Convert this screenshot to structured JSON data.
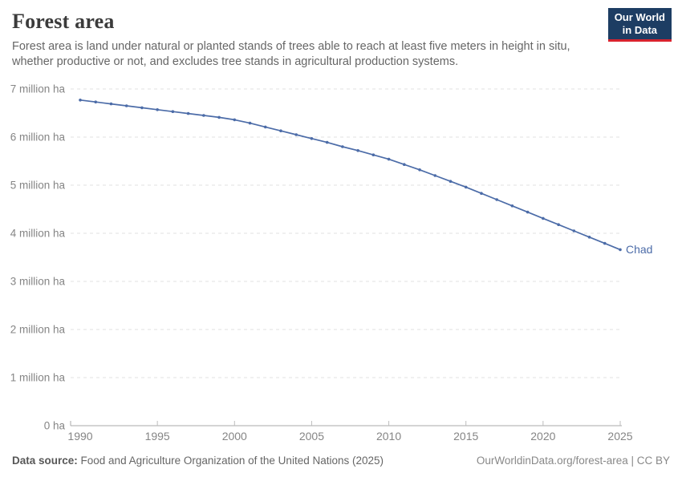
{
  "header": {
    "title": "Forest area",
    "subtitle_line1": "Forest area is land under natural or planted stands of trees able to reach at least five meters in height in situ,",
    "subtitle_line2": "whether productive or not, and excludes tree stands in agricultural production systems.",
    "logo": {
      "line1": "Our World",
      "line2": "in Data"
    }
  },
  "chart_data": {
    "type": "line",
    "title": "Forest area",
    "entity_label": "Chad",
    "ylabel": "",
    "xlabel": "",
    "unit": "ha",
    "ylim": [
      0,
      7000000
    ],
    "xlim": [
      1990,
      2025
    ],
    "grid": "horizontal dashed",
    "legend_position": "end-of-line label",
    "x": [
      1990,
      1991,
      1992,
      1993,
      1994,
      1995,
      1996,
      1997,
      1998,
      1999,
      2000,
      2001,
      2002,
      2003,
      2004,
      2005,
      2006,
      2007,
      2008,
      2009,
      2010,
      2011,
      2012,
      2013,
      2014,
      2015,
      2016,
      2017,
      2018,
      2019,
      2020,
      2021,
      2022,
      2023,
      2024,
      2025
    ],
    "values_million_ha": [
      6.77,
      6.73,
      6.69,
      6.65,
      6.61,
      6.57,
      6.53,
      6.49,
      6.45,
      6.41,
      6.36,
      6.29,
      6.21,
      6.13,
      6.05,
      5.97,
      5.89,
      5.8,
      5.72,
      5.63,
      5.54,
      5.43,
      5.32,
      5.2,
      5.08,
      4.96,
      4.83,
      4.7,
      4.57,
      4.44,
      4.31,
      4.18,
      4.05,
      3.92,
      3.79,
      3.66
    ],
    "ytick_values_million": [
      0,
      1,
      2,
      3,
      4,
      5,
      6,
      7
    ],
    "ytick_labels": [
      "0 ha",
      "1 million ha",
      "2 million ha",
      "3 million ha",
      "4 million ha",
      "5 million ha",
      "6 million ha",
      "7 million ha"
    ],
    "xtick_labels": [
      "1990",
      "1995",
      "2000",
      "2005",
      "2010",
      "2015",
      "2020",
      "2025"
    ]
  },
  "footer": {
    "source_label": "Data source:",
    "source_text": " Food and Agriculture Organization of the United Nations (2025)",
    "license_text": "OurWorldinData.org/forest-area | CC BY"
  },
  "colors": {
    "line": "#4C6CA8",
    "entity_label": "#4C6CA8",
    "logo_bg": "#1D3D63",
    "logo_accent": "#D8232E",
    "title_text": "#3B3B3B",
    "subtitle_text": "#666666",
    "axis_text": "#858585",
    "gridline": "#E0E0E0",
    "axis_line": "#A8A8A8"
  }
}
